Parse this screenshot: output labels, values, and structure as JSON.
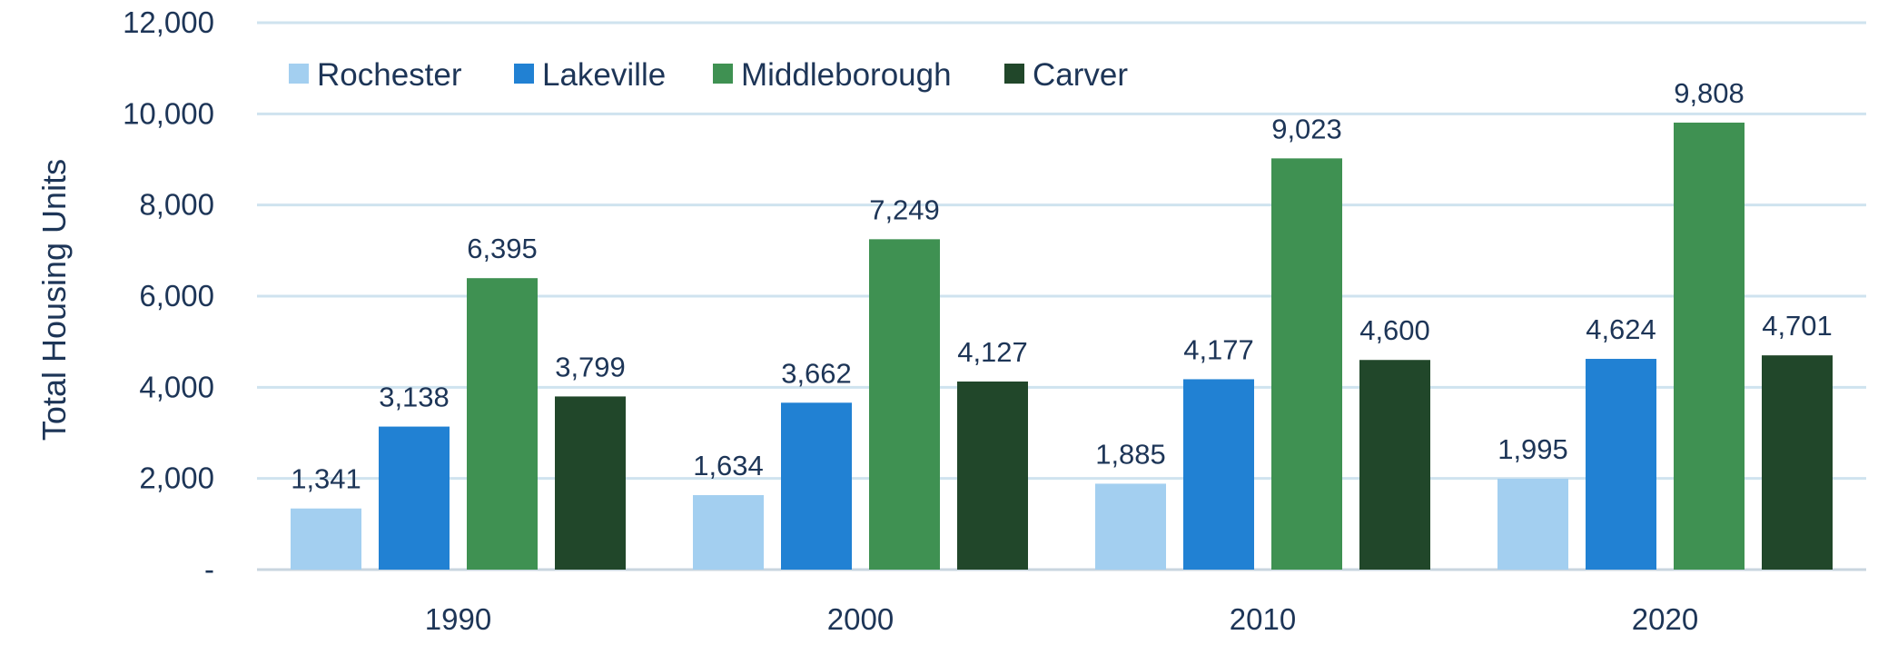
{
  "chart_data": {
    "type": "bar",
    "categories": [
      "1990",
      "2000",
      "2010",
      "2020"
    ],
    "series": [
      {
        "name": "Rochester",
        "color": "#a3cff0",
        "values": [
          1341,
          1634,
          1885,
          1995
        ]
      },
      {
        "name": "Lakeville",
        "color": "#2181d3",
        "values": [
          3138,
          3662,
          4177,
          4624
        ]
      },
      {
        "name": "Middleborough",
        "color": "#3f9152",
        "values": [
          6395,
          7249,
          9023,
          9808
        ]
      },
      {
        "name": "Carver",
        "color": "#21472a",
        "values": [
          3799,
          4127,
          4600,
          4701
        ]
      }
    ],
    "title": "",
    "xlabel": "",
    "ylabel": "Total Housing Units",
    "ylim": [
      0,
      12000
    ],
    "yticks": [
      0,
      2000,
      4000,
      6000,
      8000,
      10000,
      12000
    ],
    "ytick_labels": [
      "-",
      "2,000",
      "4,000",
      "6,000",
      "8,000",
      "10,000",
      "12,000"
    ],
    "data_labels": [
      [
        "1,341",
        "1,634",
        "1,885",
        "1,995"
      ],
      [
        "3,138",
        "3,662",
        "4,177",
        "4,624"
      ],
      [
        "6,395",
        "7,249",
        "9,023",
        "9,808"
      ],
      [
        "3,799",
        "4,127",
        "4,600",
        "4,701"
      ]
    ],
    "grid": true,
    "legend": "top-left"
  }
}
